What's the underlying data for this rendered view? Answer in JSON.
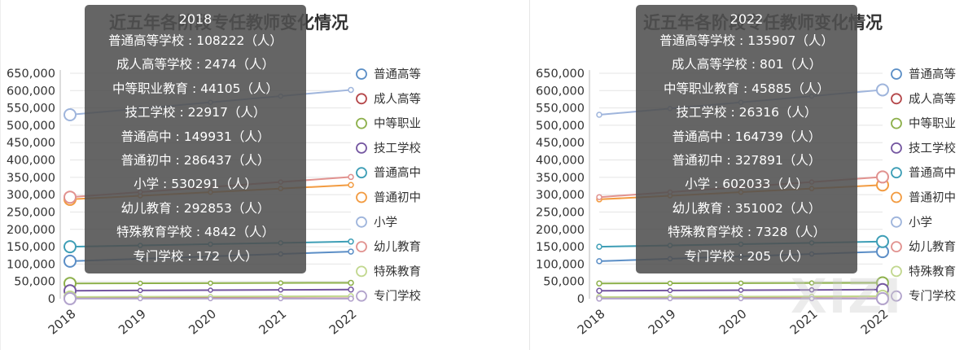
{
  "chart_data": [
    {
      "type": "line",
      "title": "近五年各阶段专任教师变化情况",
      "categories": [
        "2018",
        "2019",
        "2020",
        "2021",
        "2022"
      ],
      "y_ticks": [
        "650,000",
        "600,000",
        "550,000",
        "500,000",
        "450,000",
        "400,000",
        "350,000",
        "300,000",
        "250,000",
        "200,000",
        "150,000",
        "100,000",
        "50,000",
        "0"
      ],
      "ylim": [
        0,
        650000
      ],
      "grid": true,
      "legend_position": "right",
      "highlight_index": 0,
      "series": [
        {
          "name": "普通高等学校",
          "legend_label": "普通高等",
          "color": "#5b8ec6",
          "values": [
            108222,
            null,
            null,
            null,
            135907
          ]
        },
        {
          "name": "成人高等学校",
          "legend_label": "成人高等",
          "color": "#b5484b",
          "values": [
            2474,
            null,
            null,
            null,
            801
          ]
        },
        {
          "name": "中等职业教育",
          "legend_label": "中等职业",
          "color": "#8db04b",
          "values": [
            44105,
            null,
            null,
            null,
            45885
          ]
        },
        {
          "name": "技工学校",
          "legend_label": "技工学校",
          "color": "#7456a0",
          "values": [
            22917,
            null,
            null,
            null,
            26316
          ]
        },
        {
          "name": "普通高中",
          "legend_label": "普通高中",
          "color": "#3e9eb6",
          "values": [
            149931,
            null,
            null,
            null,
            164739
          ]
        },
        {
          "name": "普通初中",
          "legend_label": "普通初中",
          "color": "#f29b41",
          "values": [
            286437,
            null,
            null,
            null,
            327891
          ]
        },
        {
          "name": "小学",
          "legend_label": "小学",
          "color": "#9fb5dc",
          "values": [
            530291,
            null,
            null,
            null,
            602033
          ]
        },
        {
          "name": "幼儿教育",
          "legend_label": "幼儿教育",
          "color": "#e1928f",
          "values": [
            292853,
            null,
            null,
            null,
            351002
          ]
        },
        {
          "name": "特殊教育学校",
          "legend_label": "特殊教育",
          "color": "#c1d78e",
          "values": [
            4842,
            null,
            null,
            null,
            7328
          ]
        },
        {
          "name": "专门学校",
          "legend_label": "专门学校",
          "color": "#b2a3cc",
          "values": [
            172,
            null,
            null,
            null,
            205
          ]
        }
      ],
      "tooltip": {
        "year": "2018",
        "rows": [
          "普通高等学校 : 108222（人）",
          "成人高等学校 : 2474（人）",
          "中等职业教育 : 44105（人）",
          "技工学校 : 22917（人）",
          "普通高中 : 149931（人）",
          "普通初中 : 286437（人）",
          "小学 : 530291（人）",
          "幼儿教育 : 292853（人）",
          "特殊教育学校 : 4842（人）",
          "专门学校 : 172（人）"
        ]
      }
    },
    {
      "type": "line",
      "title": "近五年各阶段专任教师变化情况",
      "categories": [
        "2018",
        "2019",
        "2020",
        "2021",
        "2022"
      ],
      "y_ticks": [
        "650,000",
        "600,000",
        "550,000",
        "500,000",
        "450,000",
        "400,000",
        "350,000",
        "300,000",
        "250,000",
        "200,000",
        "150,000",
        "100,000",
        "50,000",
        "0"
      ],
      "ylim": [
        0,
        650000
      ],
      "grid": true,
      "legend_position": "right",
      "highlight_index": 4,
      "series": [
        {
          "name": "普通高等学校",
          "legend_label": "普通高等",
          "color": "#5b8ec6",
          "values": [
            108222,
            null,
            null,
            null,
            135907
          ]
        },
        {
          "name": "成人高等学校",
          "legend_label": "成人高等",
          "color": "#b5484b",
          "values": [
            2474,
            null,
            null,
            null,
            801
          ]
        },
        {
          "name": "中等职业教育",
          "legend_label": "中等职业",
          "color": "#8db04b",
          "values": [
            44105,
            null,
            null,
            null,
            45885
          ]
        },
        {
          "name": "技工学校",
          "legend_label": "技工学校",
          "color": "#7456a0",
          "values": [
            22917,
            null,
            null,
            null,
            26316
          ]
        },
        {
          "name": "普通高中",
          "legend_label": "普通高中",
          "color": "#3e9eb6",
          "values": [
            149931,
            null,
            null,
            null,
            164739
          ]
        },
        {
          "name": "普通初中",
          "legend_label": "普通初中",
          "color": "#f29b41",
          "values": [
            286437,
            null,
            null,
            null,
            327891
          ]
        },
        {
          "name": "小学",
          "legend_label": "小学",
          "color": "#9fb5dc",
          "values": [
            530291,
            null,
            null,
            null,
            602033
          ]
        },
        {
          "name": "幼儿教育",
          "legend_label": "幼儿教育",
          "color": "#e1928f",
          "values": [
            292853,
            null,
            null,
            null,
            351002
          ]
        },
        {
          "name": "特殊教育学校",
          "legend_label": "特殊教育",
          "color": "#c1d78e",
          "values": [
            4842,
            null,
            null,
            null,
            7328
          ]
        },
        {
          "name": "专门学校",
          "legend_label": "专门学校",
          "color": "#b2a3cc",
          "values": [
            172,
            null,
            null,
            null,
            205
          ]
        }
      ],
      "tooltip": {
        "year": "2022",
        "rows": [
          "普通高等学校 : 135907（人）",
          "成人高等学校 : 801（人）",
          "中等职业教育 : 45885（人）",
          "技工学校 : 26316（人）",
          "普通高中 : 164739（人）",
          "普通初中 : 327891（人）",
          "小学 : 602033（人）",
          "幼儿教育 : 351002（人）",
          "特殊教育学校 : 7328（人）",
          "专门学校 : 205（人）"
        ]
      }
    }
  ],
  "watermark": "XIZI"
}
